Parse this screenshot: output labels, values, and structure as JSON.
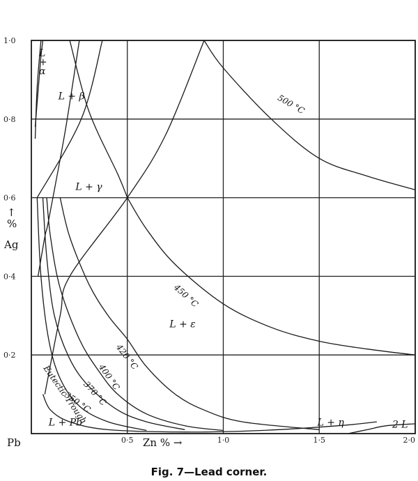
{
  "chart_data": {
    "type": "ternary-corner-diagram",
    "x_axis": {
      "label": "Zn % →",
      "range": [
        0,
        2.0
      ],
      "ticks": [
        "0·5",
        "1·0",
        "1·5",
        "2·0"
      ],
      "tick_values": [
        0.5,
        1.0,
        1.5,
        2.0
      ]
    },
    "y_axis": {
      "label_lines": [
        "%",
        "↑",
        "Ag"
      ],
      "range": [
        0,
        1.0
      ],
      "ticks": [
        "1·0",
        "0·8",
        "0·6",
        "0·4",
        "0·2"
      ],
      "tick_values": [
        1.0,
        0.8,
        0.6,
        0.4,
        0.2
      ]
    },
    "origin_label": "Pb",
    "grid": true,
    "regions": [
      {
        "name": "L-plus-alpha",
        "lines": [
          "L",
          "+",
          "α"
        ],
        "at": [
          0.04,
          0.96
        ]
      },
      {
        "name": "L-plus-beta",
        "label": "L + β",
        "at": [
          0.14,
          0.85
        ]
      },
      {
        "name": "L-plus-gamma",
        "label": "L + γ",
        "at": [
          0.23,
          0.62
        ]
      },
      {
        "name": "L-plus-epsilon",
        "label": "L + ε",
        "at": [
          0.72,
          0.27
        ]
      },
      {
        "name": "L-plus-eta",
        "label": "L + η",
        "at": [
          1.49,
          0.02
        ]
      },
      {
        "name": "two-liquids",
        "label": "2 L",
        "at": [
          1.88,
          0.015
        ]
      },
      {
        "name": "L-plus-Pb",
        "label": "L + Pb",
        "at": [
          0.09,
          0.02
        ]
      }
    ],
    "isotherms": [
      {
        "name": "500°C",
        "label": "500 °C",
        "points": [
          [
            0.9,
            1.0
          ],
          [
            1.0,
            0.93
          ],
          [
            1.25,
            0.8
          ],
          [
            1.5,
            0.7
          ],
          [
            1.75,
            0.655
          ],
          [
            2.0,
            0.62
          ]
        ]
      },
      {
        "name": "450°C",
        "label": "450 °C",
        "points": [
          [
            0.5,
            0.6
          ],
          [
            0.6,
            0.52
          ],
          [
            0.75,
            0.43
          ],
          [
            1.0,
            0.33
          ],
          [
            1.25,
            0.27
          ],
          [
            1.5,
            0.235
          ],
          [
            1.75,
            0.215
          ],
          [
            2.0,
            0.2
          ]
        ]
      },
      {
        "name": "420°C",
        "label": "420 °C",
        "points": [
          [
            0.15,
            0.6
          ],
          [
            0.2,
            0.5
          ],
          [
            0.3,
            0.38
          ],
          [
            0.4,
            0.3
          ],
          [
            0.5,
            0.24
          ],
          [
            0.6,
            0.17
          ],
          [
            0.75,
            0.1
          ],
          [
            0.9,
            0.06
          ],
          [
            1.1,
            0.03
          ],
          [
            1.5,
            0.01
          ]
        ]
      },
      {
        "name": "400°C",
        "label": "400 °C",
        "points": [
          [
            0.08,
            0.6
          ],
          [
            0.1,
            0.5
          ],
          [
            0.15,
            0.37
          ],
          [
            0.25,
            0.24
          ],
          [
            0.35,
            0.16
          ],
          [
            0.45,
            0.1
          ],
          [
            0.6,
            0.05
          ],
          [
            0.8,
            0.02
          ],
          [
            1.0,
            0.008
          ]
        ]
      },
      {
        "name": "370°C",
        "label": "370 °C",
        "points": [
          [
            0.06,
            0.6
          ],
          [
            0.08,
            0.45
          ],
          [
            0.12,
            0.3
          ],
          [
            0.2,
            0.19
          ],
          [
            0.3,
            0.12
          ],
          [
            0.45,
            0.06
          ],
          [
            0.6,
            0.03
          ],
          [
            0.8,
            0.01
          ]
        ]
      },
      {
        "name": "350°C",
        "label": "350 °C",
        "points": [
          [
            0.03,
            0.6
          ],
          [
            0.05,
            0.4
          ],
          [
            0.09,
            0.24
          ],
          [
            0.15,
            0.14
          ],
          [
            0.25,
            0.07
          ],
          [
            0.4,
            0.03
          ],
          [
            0.6,
            0.008
          ]
        ]
      }
    ],
    "other_lines": [
      {
        "name": "gamma-epsilon-boundary-steep",
        "points": [
          [
            0.035,
            0.4
          ],
          [
            0.07,
            0.5
          ],
          [
            0.085,
            0.53
          ],
          [
            0.12,
            0.62
          ],
          [
            0.18,
            0.78
          ],
          [
            0.25,
            1.0
          ]
        ]
      },
      {
        "name": "gamma-epsilon-boundary",
        "points": [
          [
            0.07,
            0.1
          ],
          [
            0.15,
            0.3
          ],
          [
            0.2,
            0.4
          ],
          [
            0.5,
            0.6
          ],
          [
            0.7,
            0.76
          ],
          [
            0.9,
            1.0
          ]
        ]
      },
      {
        "name": "beta-gamma-boundary",
        "points": [
          [
            0.03,
            0.6
          ],
          [
            0.26,
            0.8
          ],
          [
            0.37,
            1.0
          ]
        ]
      },
      {
        "name": "gamma-epsilon-upper",
        "points": [
          [
            0.2,
            1.0
          ],
          [
            0.3,
            0.82
          ],
          [
            0.45,
            0.66
          ],
          [
            0.5,
            0.6
          ]
        ]
      },
      {
        "name": "alpha-beta-boundary",
        "points": [
          [
            0.02,
            0.78
          ],
          [
            0.04,
            0.9
          ],
          [
            0.05,
            0.96
          ],
          [
            0.06,
            1.0
          ]
        ]
      },
      {
        "name": "alpha-left",
        "points": [
          [
            0.02,
            0.75
          ],
          [
            0.03,
            0.88
          ],
          [
            0.05,
            1.0
          ]
        ]
      }
    ],
    "eutectic_trough": {
      "label": "Eutectic Trough",
      "points": [
        [
          0.06,
          0.1
        ],
        [
          0.1,
          0.06
        ],
        [
          0.2,
          0.03
        ],
        [
          0.4,
          0.01
        ],
        [
          0.8,
          0.004
        ],
        [
          1.2,
          0.008
        ],
        [
          1.6,
          0.02
        ],
        [
          1.8,
          0.03
        ]
      ]
    },
    "two_liquid_boundary": {
      "points": [
        [
          1.65,
          0.0
        ],
        [
          1.75,
          0.01
        ],
        [
          1.85,
          0.02
        ],
        [
          2.0,
          0.025
        ]
      ]
    },
    "caption": "Fig. 7—Lead corner."
  }
}
